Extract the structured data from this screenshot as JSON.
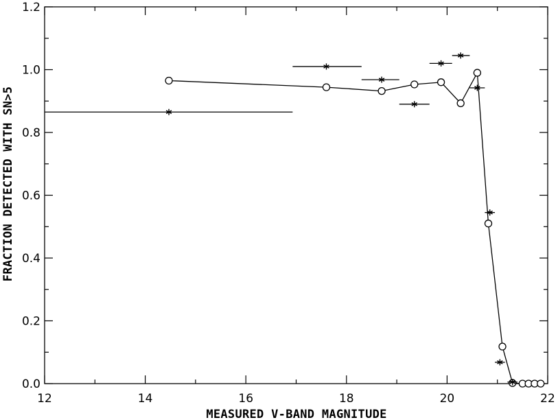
{
  "chart_data": {
    "type": "scatter",
    "title": "",
    "xlabel": "MEASURED V-BAND MAGNITUDE",
    "ylabel": "FRACTION DETECTED WITH SN>5",
    "xlim": [
      12,
      22
    ],
    "ylim": [
      0,
      1.2
    ],
    "x_ticks": [
      12,
      14,
      16,
      18,
      20,
      22
    ],
    "x_tick_labels": [
      "12",
      "14",
      "16",
      "18",
      "20",
      "22"
    ],
    "y_ticks": [
      0,
      0.2,
      0.4,
      0.6,
      0.8,
      1.0,
      1.2
    ],
    "y_tick_labels": [
      "0.0",
      "0.2",
      "0.4",
      "0.6",
      "0.8",
      "1.0",
      "1.2"
    ],
    "grid": false,
    "colors": {
      "ink": "#000000",
      "background": "#ffffff"
    },
    "series": [
      {
        "marker": "circle",
        "connected": true,
        "points": [
          {
            "x": 14.47,
            "y": 0.965
          },
          {
            "x": 17.6,
            "y": 0.944
          },
          {
            "x": 18.7,
            "y": 0.932
          },
          {
            "x": 19.35,
            "y": 0.953
          },
          {
            "x": 19.88,
            "y": 0.96
          },
          {
            "x": 20.27,
            "y": 0.893
          },
          {
            "x": 20.6,
            "y": 0.99
          },
          {
            "x": 20.82,
            "y": 0.51
          },
          {
            "x": 21.1,
            "y": 0.118
          },
          {
            "x": 21.3,
            "y": 0.002
          },
          {
            "x": 21.5,
            "y": 0.0
          },
          {
            "x": 21.62,
            "y": 0.0
          },
          {
            "x": 21.74,
            "y": 0.0
          },
          {
            "x": 21.86,
            "y": 0.0
          }
        ]
      },
      {
        "marker": "asterisk",
        "connected": false,
        "points": [
          {
            "x": 14.47,
            "y": 0.865,
            "xerr": [
              12.0,
              16.93
            ]
          },
          {
            "x": 17.6,
            "y": 1.01,
            "xerr": [
              16.93,
              18.3
            ]
          },
          {
            "x": 18.7,
            "y": 0.968,
            "xerr": [
              18.3,
              19.05
            ]
          },
          {
            "x": 19.35,
            "y": 0.89,
            "xerr": [
              19.05,
              19.65
            ]
          },
          {
            "x": 19.88,
            "y": 1.02,
            "xerr": [
              19.65,
              20.1
            ]
          },
          {
            "x": 20.27,
            "y": 1.045,
            "xerr": [
              20.1,
              20.45
            ]
          },
          {
            "x": 20.6,
            "y": 0.942,
            "xerr": [
              20.45,
              20.75
            ]
          },
          {
            "x": 20.85,
            "y": 0.545,
            "xerr": [
              20.75,
              20.95
            ]
          },
          {
            "x": 21.05,
            "y": 0.068,
            "xerr": [
              20.95,
              21.15
            ]
          },
          {
            "x": 21.3,
            "y": 0.005,
            "xerr": [
              21.2,
              21.4
            ]
          }
        ]
      }
    ]
  }
}
